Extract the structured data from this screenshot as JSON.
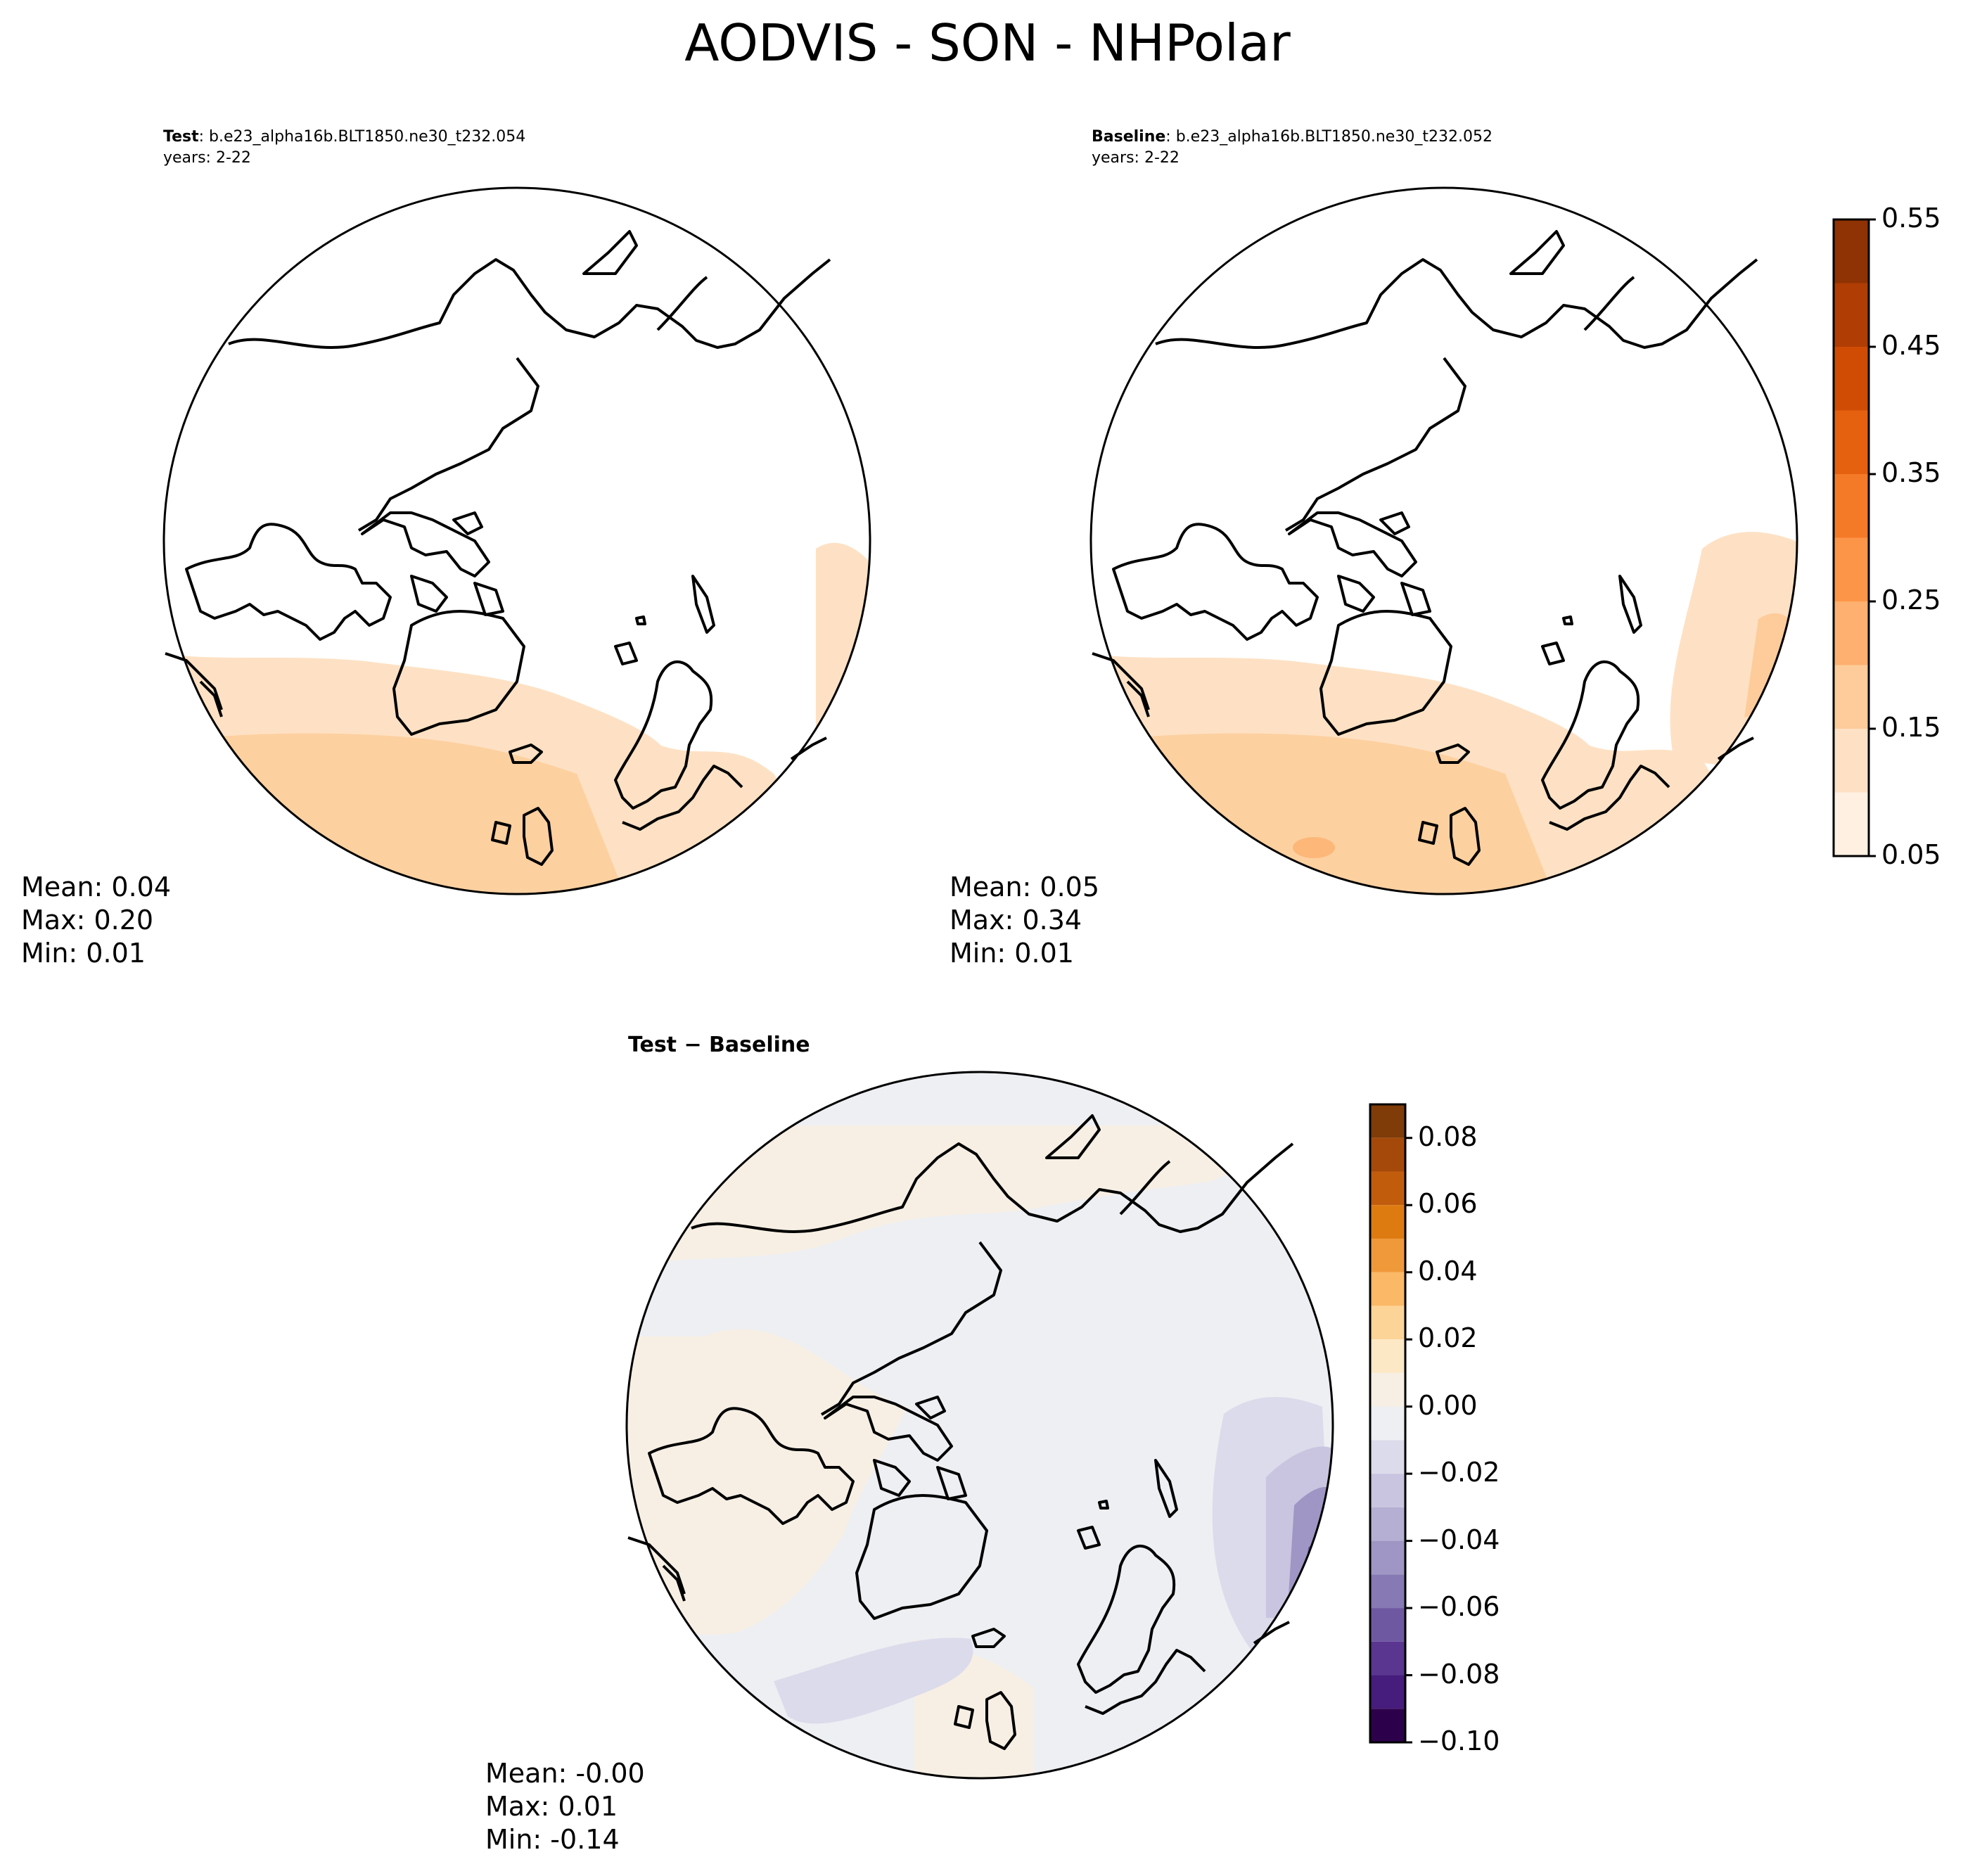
{
  "figure": {
    "title": "AODVIS - SON - NHPolar"
  },
  "panels": {
    "test": {
      "label_bold": "Test",
      "label_rest": ": b.e23_alpha16b.BLT1850.ne30_t232.054",
      "years": "years: 2-22",
      "stats": {
        "mean": "Mean:  0.04",
        "max": "Max:  0.20",
        "min": "Min:  0.01"
      }
    },
    "baseline": {
      "label_bold": "Baseline",
      "label_rest": ": b.e23_alpha16b.BLT1850.ne30_t232.052",
      "years": "years: 2-22",
      "stats": {
        "mean": "Mean:  0.05",
        "max": "Max:  0.34",
        "min": "Min:  0.01"
      }
    },
    "diff": {
      "title": "Test − Baseline",
      "stats": {
        "mean": "Mean: -0.00",
        "max": "Max:  0.01",
        "min": "Min: -0.14"
      }
    }
  },
  "chart_data": [
    {
      "type": "heatmap",
      "projection": "north-polar-stereographic",
      "colorbar_ticks": [
        "0.05",
        "0.15",
        "0.25",
        "0.35",
        "0.45",
        "0.55"
      ],
      "levels": [
        0.05,
        0.1,
        0.15,
        0.2,
        0.25,
        0.3,
        0.35,
        0.4,
        0.45,
        0.5,
        0.55
      ],
      "colormap": [
        "#fff0e2",
        "#fee1c4",
        "#fdcc9a",
        "#fdb06f",
        "#fd9548",
        "#f57a27",
        "#e5600f",
        "#d04c05",
        "#b03d04",
        "#8f3204"
      ]
    },
    {
      "type": "heatmap",
      "projection": "north-polar-stereographic",
      "colorbar_ticks": [
        "0.08",
        "0.06",
        "0.04",
        "0.02",
        "0.00",
        "−0.02",
        "−0.04",
        "−0.06",
        "−0.08",
        "−0.10"
      ],
      "tick_values": [
        0.08,
        0.06,
        0.04,
        0.02,
        0.0,
        -0.02,
        -0.04,
        -0.06,
        -0.08,
        -0.1
      ],
      "range": [
        -0.1,
        0.09
      ],
      "colormap_top_to_bottom": [
        "#7f3b08",
        "#a5490a",
        "#c25c0d",
        "#dd7b11",
        "#f0993b",
        "#fbb866",
        "#fdd497",
        "#fde8c6",
        "#f7efe4",
        "#eeeff3",
        "#dcdbeb",
        "#c9c5e0",
        "#b5afd4",
        "#9f96c5",
        "#8779b3",
        "#6f58a2",
        "#5a3690",
        "#461c7c",
        "#2d004b"
      ]
    }
  ]
}
